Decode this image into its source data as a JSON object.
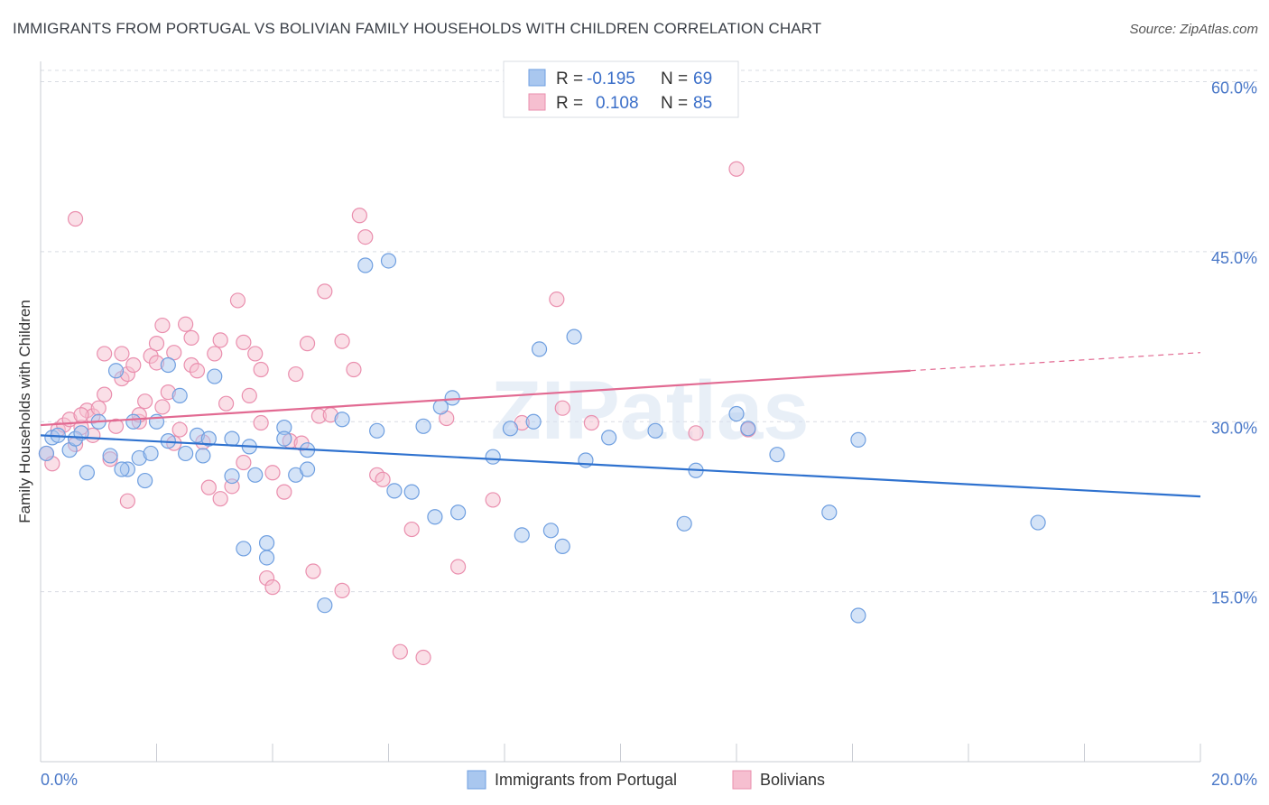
{
  "title": "IMMIGRANTS FROM PORTUGAL VS BOLIVIAN FAMILY HOUSEHOLDS WITH CHILDREN CORRELATION CHART",
  "source": "Source: ZipAtlas.com",
  "watermark": "ZIPatlas",
  "colors": {
    "blue_fill": "#a9c7ef",
    "blue_stroke": "#6f9fe0",
    "blue_line": "#2f72cf",
    "pink_fill": "#f6bfd0",
    "pink_stroke": "#ea8fae",
    "pink_line": "#e26a92",
    "tick_text": "#4a78c8",
    "grid": "#d9dce3"
  },
  "legend": {
    "rows": [
      {
        "r_label": "R =",
        "r_value": "-0.195",
        "n_label": "N =",
        "n_value": "69"
      },
      {
        "r_label": "R =",
        "r_value": "0.108",
        "n_label": "N =",
        "n_value": "85"
      }
    ]
  },
  "bottom_legend": [
    "Immigrants from Portugal",
    "Bolivians"
  ],
  "chart_data": {
    "type": "scatter",
    "title": "IMMIGRANTS FROM PORTUGAL VS BOLIVIAN FAMILY HOUSEHOLDS WITH CHILDREN CORRELATION CHART",
    "xlabel": "",
    "ylabel": "Family Households with Children",
    "xlim": [
      0,
      20
    ],
    "ylim": [
      0,
      61
    ],
    "x_tick_labels": [
      "0.0%",
      "20.0%"
    ],
    "y_ticks": [
      15,
      30,
      45,
      60
    ],
    "y_tick_labels": [
      "15.0%",
      "30.0%",
      "45.0%",
      "60.0%"
    ],
    "grid": true,
    "legend_position": "top-center",
    "series": [
      {
        "name": "Immigrants from Portugal",
        "points": [
          [
            0.1,
            27.2
          ],
          [
            0.2,
            28.6
          ],
          [
            0.3,
            28.8
          ],
          [
            0.5,
            27.5
          ],
          [
            0.6,
            28.5
          ],
          [
            0.7,
            29.0
          ],
          [
            0.8,
            25.5
          ],
          [
            1.0,
            30.0
          ],
          [
            1.2,
            27.0
          ],
          [
            1.3,
            34.5
          ],
          [
            1.5,
            25.8
          ],
          [
            1.6,
            30.0
          ],
          [
            1.7,
            26.8
          ],
          [
            1.8,
            24.8
          ],
          [
            1.9,
            27.2
          ],
          [
            2.0,
            30.0
          ],
          [
            2.2,
            35.0
          ],
          [
            2.4,
            32.3
          ],
          [
            2.5,
            27.2
          ],
          [
            2.7,
            28.8
          ],
          [
            2.8,
            27.0
          ],
          [
            2.9,
            28.5
          ],
          [
            3.0,
            34.0
          ],
          [
            3.3,
            25.2
          ],
          [
            3.3,
            28.5
          ],
          [
            3.5,
            18.8
          ],
          [
            3.6,
            27.8
          ],
          [
            3.7,
            25.3
          ],
          [
            3.9,
            18.0
          ],
          [
            3.9,
            19.3
          ],
          [
            4.2,
            29.5
          ],
          [
            4.2,
            28.5
          ],
          [
            4.4,
            25.3
          ],
          [
            4.6,
            25.8
          ],
          [
            4.6,
            27.5
          ],
          [
            4.9,
            13.8
          ],
          [
            5.2,
            30.2
          ],
          [
            5.6,
            43.8
          ],
          [
            5.8,
            29.2
          ],
          [
            6.0,
            44.2
          ],
          [
            6.1,
            23.9
          ],
          [
            6.4,
            23.8
          ],
          [
            6.6,
            29.6
          ],
          [
            6.8,
            21.6
          ],
          [
            6.9,
            31.3
          ],
          [
            7.1,
            32.1
          ],
          [
            7.2,
            22.0
          ],
          [
            7.8,
            26.9
          ],
          [
            8.1,
            29.4
          ],
          [
            8.3,
            20.0
          ],
          [
            8.5,
            30.0
          ],
          [
            8.6,
            36.4
          ],
          [
            8.8,
            20.4
          ],
          [
            9.0,
            19.0
          ],
          [
            9.2,
            37.5
          ],
          [
            9.4,
            26.6
          ],
          [
            9.8,
            28.6
          ],
          [
            10.6,
            29.2
          ],
          [
            11.1,
            21.0
          ],
          [
            11.3,
            25.7
          ],
          [
            12.0,
            30.7
          ],
          [
            12.2,
            29.4
          ],
          [
            12.7,
            27.1
          ],
          [
            13.6,
            22.0
          ],
          [
            14.1,
            28.4
          ],
          [
            14.1,
            12.9
          ],
          [
            17.2,
            21.1
          ],
          [
            2.2,
            28.3
          ],
          [
            1.4,
            25.8
          ]
        ],
        "trend": {
          "x": [
            0,
            20
          ],
          "y": [
            28.8,
            23.4
          ]
        }
      },
      {
        "name": "Bolivians",
        "points": [
          [
            0.1,
            27.2
          ],
          [
            0.2,
            26.3
          ],
          [
            0.3,
            29.3
          ],
          [
            0.4,
            29.7
          ],
          [
            0.5,
            30.2
          ],
          [
            0.6,
            28.0
          ],
          [
            0.7,
            29.5
          ],
          [
            0.8,
            31.0
          ],
          [
            0.9,
            30.5
          ],
          [
            1.0,
            31.2
          ],
          [
            1.1,
            32.4
          ],
          [
            1.2,
            26.7
          ],
          [
            1.3,
            29.6
          ],
          [
            1.4,
            33.8
          ],
          [
            1.4,
            36.0
          ],
          [
            1.5,
            34.2
          ],
          [
            1.5,
            23.0
          ],
          [
            1.7,
            30.0
          ],
          [
            1.8,
            31.8
          ],
          [
            1.9,
            35.8
          ],
          [
            2.0,
            35.2
          ],
          [
            2.1,
            31.3
          ],
          [
            2.2,
            32.6
          ],
          [
            2.3,
            36.1
          ],
          [
            2.3,
            28.1
          ],
          [
            2.4,
            29.3
          ],
          [
            2.5,
            38.6
          ],
          [
            2.6,
            37.4
          ],
          [
            2.6,
            35.0
          ],
          [
            2.7,
            34.5
          ],
          [
            2.8,
            28.2
          ],
          [
            2.9,
            24.2
          ],
          [
            3.0,
            36.0
          ],
          [
            3.1,
            37.2
          ],
          [
            3.1,
            23.2
          ],
          [
            3.2,
            31.6
          ],
          [
            3.3,
            24.3
          ],
          [
            3.4,
            40.7
          ],
          [
            3.5,
            26.4
          ],
          [
            3.5,
            37.0
          ],
          [
            3.7,
            36.0
          ],
          [
            3.8,
            34.6
          ],
          [
            3.8,
            29.9
          ],
          [
            3.9,
            16.2
          ],
          [
            4.0,
            15.4
          ],
          [
            4.0,
            25.5
          ],
          [
            4.2,
            23.8
          ],
          [
            4.3,
            28.3
          ],
          [
            4.4,
            34.2
          ],
          [
            4.5,
            28.1
          ],
          [
            4.6,
            36.9
          ],
          [
            4.7,
            16.8
          ],
          [
            4.8,
            30.5
          ],
          [
            4.9,
            41.5
          ],
          [
            5.0,
            30.6
          ],
          [
            5.2,
            37.1
          ],
          [
            5.2,
            15.1
          ],
          [
            5.4,
            34.6
          ],
          [
            5.5,
            48.2
          ],
          [
            5.6,
            46.3
          ],
          [
            5.8,
            25.3
          ],
          [
            5.9,
            24.9
          ],
          [
            6.2,
            9.7
          ],
          [
            6.4,
            20.5
          ],
          [
            6.6,
            9.2
          ],
          [
            7.0,
            30.3
          ],
          [
            7.2,
            17.2
          ],
          [
            7.8,
            23.1
          ],
          [
            8.3,
            29.9
          ],
          [
            8.9,
            40.8
          ],
          [
            9.0,
            31.2
          ],
          [
            9.5,
            29.9
          ],
          [
            11.3,
            29.0
          ],
          [
            12.0,
            52.3
          ],
          [
            12.2,
            29.3
          ],
          [
            0.6,
            47.9
          ],
          [
            1.1,
            36.0
          ],
          [
            1.6,
            35.0
          ],
          [
            2.1,
            38.5
          ],
          [
            0.7,
            30.6
          ],
          [
            0.9,
            28.8
          ],
          [
            1.7,
            30.6
          ],
          [
            2.0,
            36.9
          ],
          [
            3.6,
            32.3
          ],
          [
            11.4,
            60.0
          ]
        ],
        "trend": {
          "x": [
            0,
            15
          ],
          "y": [
            29.7,
            34.5
          ]
        },
        "trend_dashed": {
          "x": [
            15,
            20
          ],
          "y": [
            34.5,
            36.1
          ]
        }
      }
    ]
  }
}
